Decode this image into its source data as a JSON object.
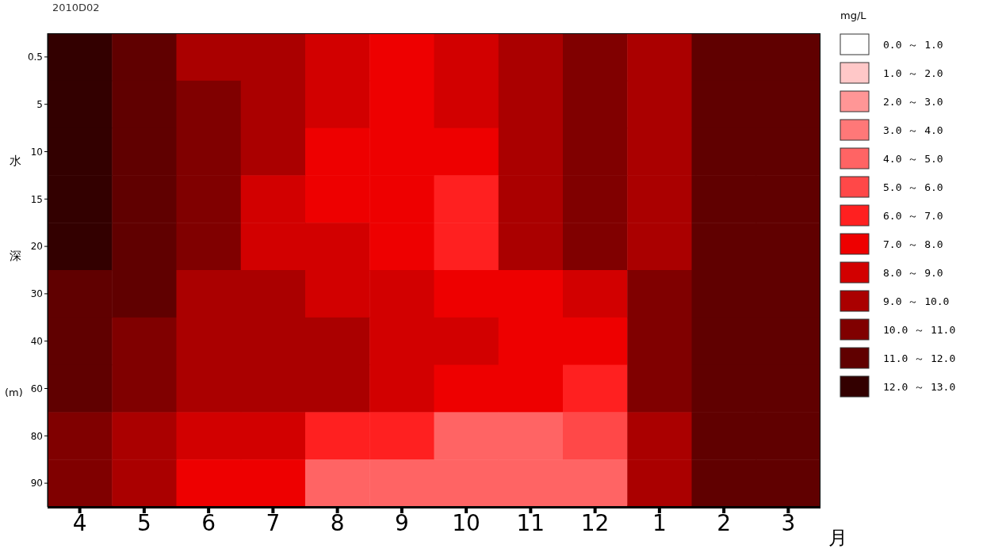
{
  "chart_data": {
    "type": "heatmap",
    "title": "2010D02",
    "xlabel": "月",
    "ylabel": "水深 (m)",
    "clabel": "mg/L",
    "categories": [
      "4",
      "5",
      "6",
      "7",
      "8",
      "9",
      "10",
      "11",
      "12",
      "1",
      "2",
      "3"
    ],
    "y_categories": [
      "0.5",
      "5",
      "10",
      "15",
      "20",
      "30",
      "40",
      "60",
      "80",
      "90"
    ],
    "cells": [
      [
        12.5,
        11.5,
        9.5,
        9.5,
        8.5,
        7.5,
        8.5,
        9.5,
        10.5,
        9.5,
        11.5,
        11.5
      ],
      [
        12.5,
        11.5,
        10.5,
        9.5,
        8.5,
        7.5,
        8.5,
        9.5,
        10.5,
        9.5,
        11.5,
        11.5
      ],
      [
        12.5,
        11.5,
        10.5,
        9.5,
        7.5,
        7.5,
        7.5,
        9.5,
        10.5,
        9.5,
        11.5,
        11.5
      ],
      [
        12.5,
        11.5,
        10.5,
        8.5,
        7.5,
        7.5,
        6.5,
        9.5,
        10.5,
        9.5,
        11.5,
        11.5
      ],
      [
        12.5,
        11.5,
        10.5,
        8.5,
        8.5,
        7.5,
        6.5,
        9.5,
        10.5,
        9.5,
        11.5,
        11.5
      ],
      [
        11.5,
        11.5,
        9.5,
        9.5,
        8.5,
        8.5,
        7.5,
        7.5,
        8.5,
        10.5,
        11.5,
        11.5
      ],
      [
        11.5,
        10.5,
        9.5,
        9.5,
        9.5,
        8.5,
        8.5,
        7.5,
        7.5,
        10.5,
        11.5,
        11.5
      ],
      [
        11.5,
        10.5,
        9.5,
        9.5,
        9.5,
        8.5,
        7.5,
        7.5,
        6.5,
        10.5,
        11.5,
        11.5
      ],
      [
        10.5,
        9.5,
        8.5,
        8.5,
        6.5,
        6.5,
        4.5,
        4.5,
        5.5,
        9.5,
        11.5,
        11.5
      ],
      [
        10.5,
        9.5,
        7.5,
        7.5,
        4.5,
        4.5,
        4.5,
        4.5,
        4.5,
        9.5,
        11.5,
        11.5
      ]
    ],
    "clim": [
      0,
      13
    ],
    "colors": [
      "#ffffff",
      "#ffc8c8",
      "#ff9696",
      "#ff7878",
      "#ff6464",
      "#ff4848",
      "#ff2020",
      "#ee0000",
      "#d20000",
      "#aa0000",
      "#800000",
      "#600000",
      "#330000"
    ],
    "cticks": [
      {
        "value": 0.5,
        "label": "0.0 ～ 1.0"
      },
      {
        "value": 1.5,
        "label": "1.0 ～ 2.0"
      },
      {
        "value": 2.5,
        "label": "2.0 ～ 3.0"
      },
      {
        "value": 3.5,
        "label": "3.0 ～ 4.0"
      },
      {
        "value": 4.5,
        "label": "4.0 ～ 5.0"
      },
      {
        "value": 5.5,
        "label": "5.0 ～ 6.0"
      },
      {
        "value": 6.5,
        "label": "6.0 ～ 7.0"
      },
      {
        "value": 7.5,
        "label": "7.0 ～ 8.0"
      },
      {
        "value": 8.5,
        "label": "8.0 ～ 9.0"
      },
      {
        "value": 9.5,
        "label": "9.0 ～ 10.0"
      },
      {
        "value": 10.5,
        "label": "10.0 ～ 11.0"
      },
      {
        "value": 11.5,
        "label": "11.0 ～ 12.0"
      },
      {
        "value": 12.5,
        "label": "12.0 ～ 13.0"
      }
    ]
  }
}
